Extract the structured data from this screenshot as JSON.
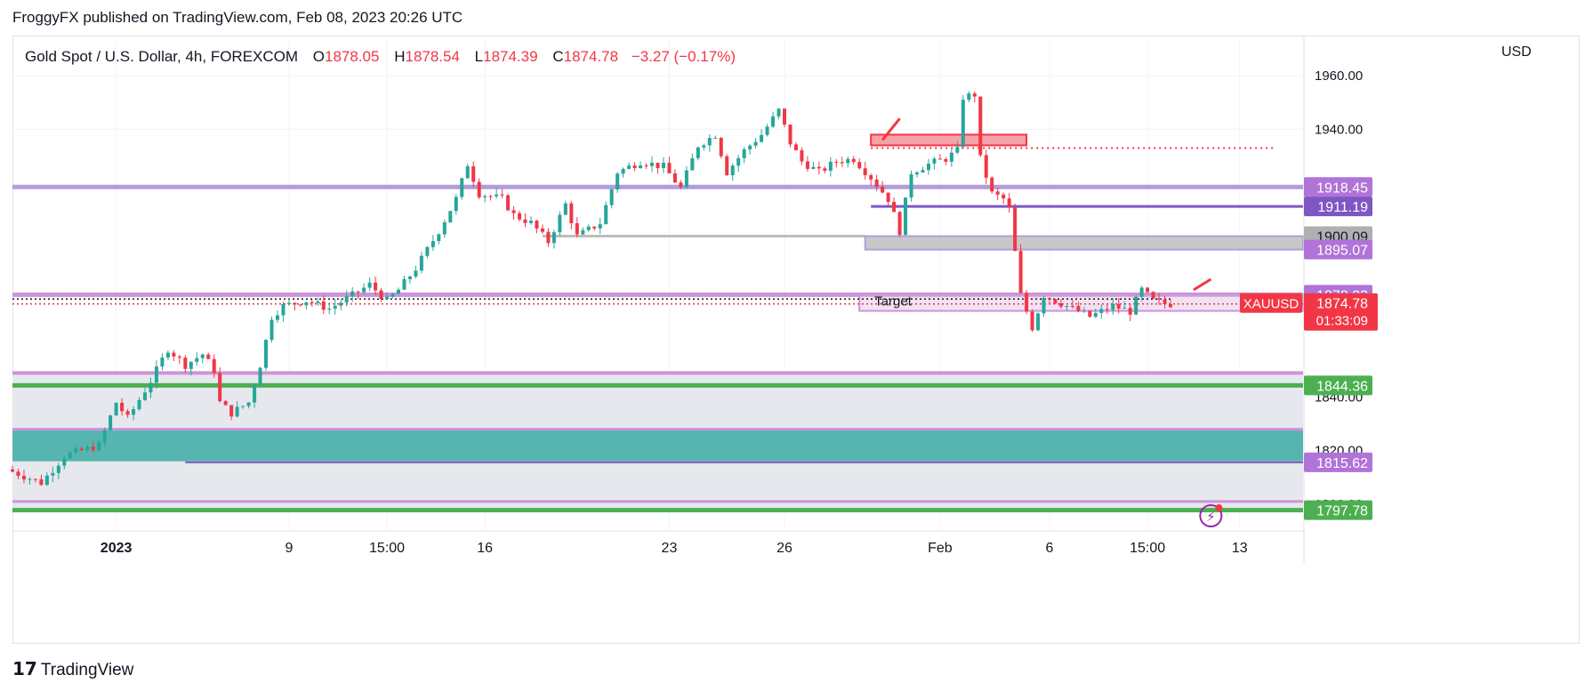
{
  "header": {
    "publisher_line": "FroggyFX published on TradingView.com, Feb 08, 2023 20:26 UTC"
  },
  "legend": {
    "symbol": "Gold Spot / U.S. Dollar, 4h, FOREXCOM",
    "o_label": "O",
    "o_value": "1878.05",
    "h_label": "H",
    "h_value": "1878.54",
    "l_label": "L",
    "l_value": "1874.39",
    "c_label": "C",
    "c_value": "1874.78",
    "change": "−3.27 (−0.17%)"
  },
  "axis": {
    "currency": "USD"
  },
  "footer": {
    "brand": "TradingView",
    "logo_text": "17"
  },
  "colors": {
    "up": "#26a69a",
    "down": "#f23645",
    "purple": "#b39ddb",
    "purple_dark": "#7e57c2",
    "green": "#4caf50",
    "zone_teal": "#26a69a",
    "zone_gray": "#e6e8ee"
  },
  "chart_data": {
    "type": "candlestick",
    "symbol": "XAUUSD",
    "timeframe": "4h",
    "ylim": [
      1790,
      1975
    ],
    "y_ticks": [
      {
        "value": 1960,
        "label": "1960.00"
      },
      {
        "value": 1940,
        "label": "1940.00"
      },
      {
        "value": 1840,
        "label": "1840.00"
      },
      {
        "value": 1820,
        "label": "1820.00"
      },
      {
        "value": 1800,
        "label": "1800.00"
      }
    ],
    "x_ticks": [
      {
        "idx": 18,
        "label": "2023",
        "bold": true
      },
      {
        "idx": 48,
        "label": "9"
      },
      {
        "idx": 65,
        "label": "15:00"
      },
      {
        "idx": 82,
        "label": "16"
      },
      {
        "idx": 114,
        "label": "23"
      },
      {
        "idx": 134,
        "label": "26"
      },
      {
        "idx": 161,
        "label": "Feb"
      },
      {
        "idx": 180,
        "label": "6"
      },
      {
        "idx": 197,
        "label": "15:00"
      },
      {
        "idx": 213,
        "label": "13"
      }
    ],
    "x_range": [
      0,
      224
    ],
    "anchors": [
      [
        0,
        1813
      ],
      [
        6,
        1808
      ],
      [
        10,
        1818
      ],
      [
        16,
        1822
      ],
      [
        19,
        1838
      ],
      [
        21,
        1832
      ],
      [
        25,
        1846
      ],
      [
        28,
        1858
      ],
      [
        31,
        1852
      ],
      [
        34,
        1856
      ],
      [
        36,
        1850
      ],
      [
        37,
        1838
      ],
      [
        39,
        1834
      ],
      [
        42,
        1838
      ],
      [
        44,
        1852
      ],
      [
        46,
        1870
      ],
      [
        48,
        1874
      ],
      [
        52,
        1876
      ],
      [
        56,
        1873
      ],
      [
        60,
        1878
      ],
      [
        63,
        1882
      ],
      [
        66,
        1876
      ],
      [
        68,
        1880
      ],
      [
        71,
        1888
      ],
      [
        75,
        1902
      ],
      [
        78,
        1914
      ],
      [
        80,
        1927
      ],
      [
        82,
        1916
      ],
      [
        86,
        1914
      ],
      [
        88,
        1908
      ],
      [
        91,
        1905
      ],
      [
        94,
        1898
      ],
      [
        97,
        1912
      ],
      [
        99,
        1900
      ],
      [
        103,
        1905
      ],
      [
        106,
        1924
      ],
      [
        110,
        1928
      ],
      [
        114,
        1926
      ],
      [
        117,
        1918
      ],
      [
        120,
        1934
      ],
      [
        123,
        1938
      ],
      [
        125,
        1924
      ],
      [
        128,
        1932
      ],
      [
        131,
        1938
      ],
      [
        134,
        1947
      ],
      [
        136,
        1935
      ],
      [
        138,
        1928
      ],
      [
        141,
        1924
      ],
      [
        144,
        1928
      ],
      [
        147,
        1929
      ],
      [
        150,
        1922
      ],
      [
        153,
        1914
      ],
      [
        155,
        1902
      ],
      [
        157,
        1924
      ],
      [
        160,
        1927
      ],
      [
        163,
        1929
      ],
      [
        165,
        1932
      ],
      [
        166,
        1952
      ],
      [
        168,
        1953
      ],
      [
        169,
        1929
      ],
      [
        171,
        1916
      ],
      [
        173,
        1914
      ],
      [
        174,
        1910
      ],
      [
        176,
        1878
      ],
      [
        178,
        1866
      ],
      [
        180,
        1878
      ],
      [
        184,
        1874
      ],
      [
        188,
        1870
      ],
      [
        192,
        1874
      ],
      [
        195,
        1872
      ],
      [
        197,
        1880
      ],
      [
        199,
        1876
      ],
      [
        201,
        1874.78
      ]
    ],
    "horizontal_levels": [
      {
        "price": 1918.45,
        "label": "1918.45",
        "style": "purple"
      },
      {
        "price": 1911.19,
        "label": "1911.19",
        "style": "purple_dark"
      },
      {
        "price": 1900.09,
        "label": "1900.09",
        "style": "gray"
      },
      {
        "price": 1895.07,
        "label": "1895.07",
        "style": "purple"
      },
      {
        "price": 1878.23,
        "label": "1878.23",
        "style": "purple"
      },
      {
        "price": 1872.18,
        "label": "1872.18",
        "style": "navy"
      },
      {
        "price": 1844.36,
        "label": "1844.36",
        "style": "green"
      },
      {
        "price": 1815.62,
        "label": "1815.62",
        "style": "purple"
      },
      {
        "price": 1797.78,
        "label": "1797.78",
        "style": "green"
      }
    ],
    "current_price": {
      "symbol": "XAUUSD",
      "price": "1874.78",
      "countdown": "01:33:09"
    },
    "annotations": {
      "target_label": "Target"
    }
  }
}
